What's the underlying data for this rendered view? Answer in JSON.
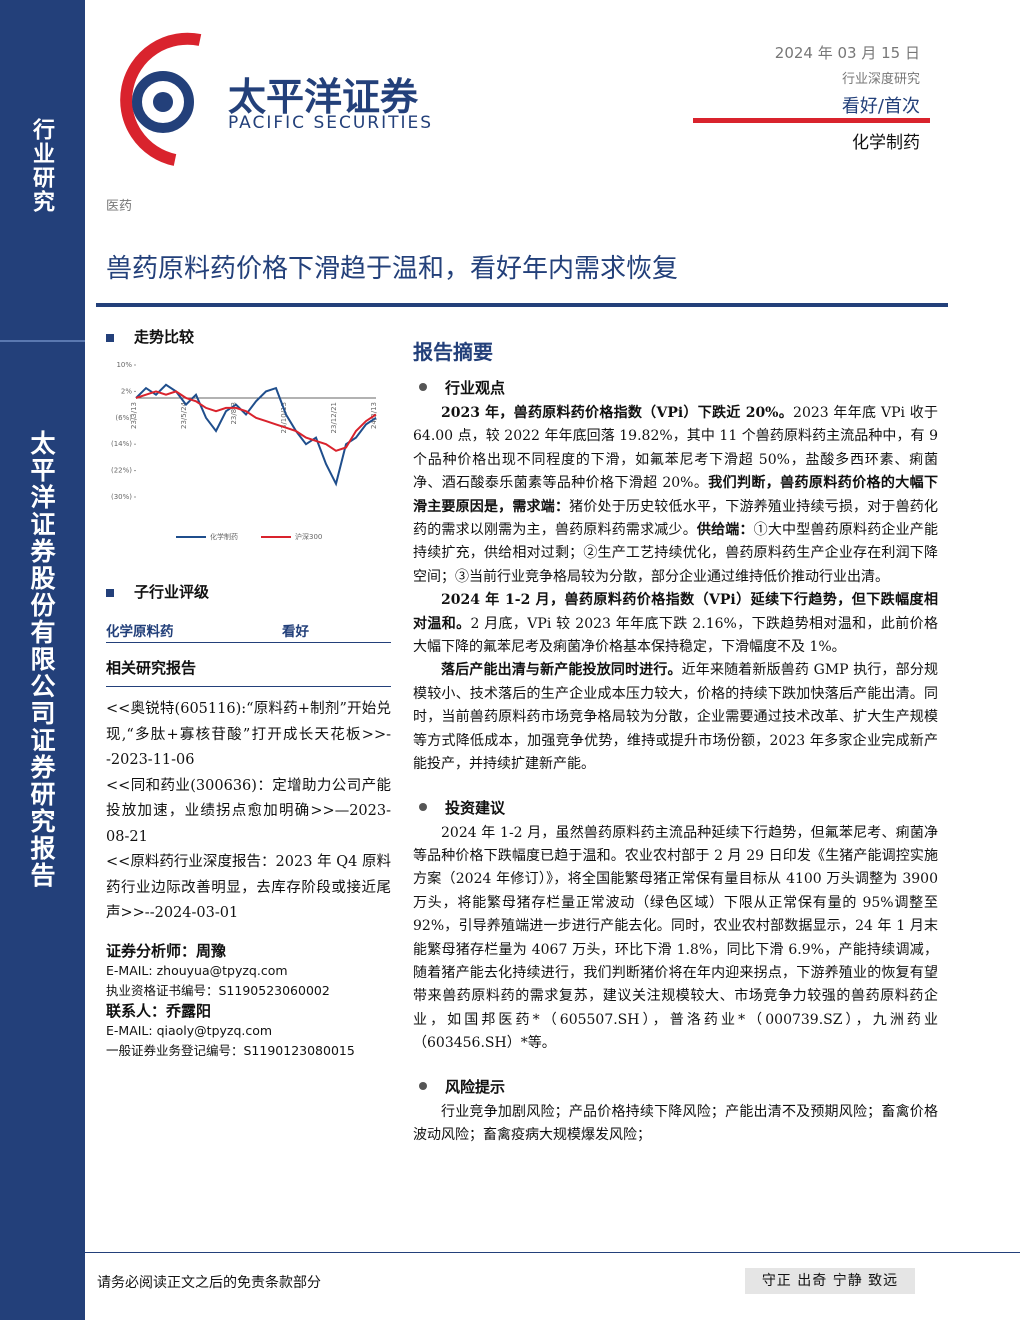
{
  "header": {
    "company_cn": "太平洋证券",
    "company_en": "PACIFIC SECURITIES",
    "date": "2024 年 03 月 15 日",
    "report_type": "行业深度研究",
    "rating": "看好/首次",
    "sector": "化学制药"
  },
  "sidebar": {
    "top": "行业研究",
    "vertical": "太平洋证券股份有限公司证券研究报告"
  },
  "category": "医药",
  "title": "兽药原料药价格下滑趋于温和，看好年内需求恢复",
  "left": {
    "trend_heading": "走势比较",
    "chart_data": {
      "type": "line",
      "categories": [
        "23/3/13",
        null,
        null,
        null,
        null,
        "23/5/24",
        null,
        null,
        null,
        null,
        "23/8/3",
        null,
        null,
        null,
        null,
        "23/10/13",
        null,
        null,
        null,
        null,
        "23/12/21",
        null,
        null,
        null,
        "24/3/13"
      ],
      "series": [
        {
          "name": "化学制药",
          "color": "#1f4e8c",
          "values": [
            0,
            3,
            1,
            4,
            2,
            -2,
            1,
            -6,
            -10,
            -4,
            -2,
            -5,
            -1,
            2,
            3,
            -5,
            -10,
            -14,
            -12,
            -20,
            -26,
            -14,
            -12,
            -8,
            -6
          ]
        },
        {
          "name": "沪深300",
          "color": "#d9232d",
          "values": [
            0,
            1,
            2,
            1,
            2,
            0,
            -1,
            -3,
            -4,
            -3,
            -3,
            -4,
            -6,
            -7,
            -8,
            -9,
            -10,
            -12,
            -13,
            -14,
            -16,
            -15,
            -10,
            -7,
            -5
          ]
        }
      ],
      "ylim": [
        -30,
        10
      ],
      "baseline": 0,
      "yticks": [
        {
          "value": 10,
          "label": "10%"
        },
        {
          "value": 2,
          "label": "2%"
        },
        {
          "value": -6,
          "label": "(6%)"
        },
        {
          "value": -14,
          "label": "(14%)"
        },
        {
          "value": -22,
          "label": "(22%)"
        },
        {
          "value": -30,
          "label": "(30%)"
        }
      ]
    },
    "sub_rating_heading": "子行业评级",
    "sub_rating_row": [
      "化学原料药",
      "看好"
    ],
    "related_heading": "相关研究报告",
    "related": [
      "<<奥锐特(605116):“原料药+制剂”开始兑现,“多肽+寡核苷酸”打开成长天花板>>--2023-11-06",
      "<<同和药业(300636)：定增助力公司产能投放加速，业绩拐点愈加明确>>—2023-08-21",
      "<<原料药行业深度报告：2023 年 Q4 原料药行业边际改善明显，去库存阶段或接近尾声>>--2024-03-01"
    ],
    "contacts": [
      {
        "b": "证券分析师：周豫"
      },
      {
        "t": "E-MAIL: zhouyua@tpyzq.com"
      },
      {
        "t": "执业资格证书编号：S1190523060002"
      },
      {
        "b": "联系人：乔露阳"
      },
      {
        "t": "E-MAIL: qiaoly@tpyzq.com"
      },
      {
        "t": "一般证券业务登记编号：S1190123080015"
      }
    ]
  },
  "right": {
    "summary_heading": "报告摘要",
    "sections": [
      {
        "heading": "行业观点",
        "paragraphs": [
          [
            {
              "b": "2023 年，兽药原料药价格指数（VPi）下跌近 20%。"
            },
            {
              "t": "2023 年年底 VPi 收于 64.00 点，较 2022 年年底回落 19.82%，其中 11 个兽药原料药主流品种中，有 9 个品种价格出现不同程度的下滑，如氟苯尼考下滑超 50%，盐酸多西环素、痢菌净、酒石酸泰乐菌素等品种价格下滑超 20%。"
            },
            {
              "b": "我们判断，兽药原料药价格的大幅下滑主要原因是，需求端："
            },
            {
              "t": "猪价处于历史较低水平，下游养殖业持续亏损，对于兽药化药的需求以刚需为主，兽药原料药需求减少。"
            },
            {
              "b": "供给端："
            },
            {
              "t": "①大中型兽药原料药企业产能持续扩充，供给相对过剩；②生产工艺持续优化，兽药原料药生产企业存在利润下降空间；③当前行业竞争格局较为分散，部分企业通过维持低价推动行业出清。"
            }
          ],
          [
            {
              "b": "2024 年 1-2 月，兽药原料药价格指数（VPi）延续下行趋势，但下跌幅度相对温和。"
            },
            {
              "t": "2 月底，VPi 较 2023 年年底下跌 2.16%，下跌趋势相对温和，此前价格大幅下降的氟苯尼考及痢菌净价格基本保持稳定，下滑幅度不及 1%。"
            }
          ],
          [
            {
              "b": "落后产能出清与新产能投放同时进行。"
            },
            {
              "t": "近年来随着新版兽药 GMP 执行，部分规模较小、技术落后的生产企业成本压力较大，价格的持续下跌加快落后产能出清。同时，当前兽药原料药市场竞争格局较为分散，企业需要通过技术改革、扩大生产规模等方式降低成本，加强竞争优势，维持或提升市场份额，2023 年多家企业完成新产能投产，并持续扩建新产能。"
            }
          ]
        ]
      },
      {
        "heading": "投资建议",
        "paragraphs": [
          [
            {
              "t": "2024 年 1-2 月，虽然兽药原料药主流品种延续下行趋势，但氟苯尼考、痢菌净等品种价格下跌幅度已趋于温和。农业农村部于 2 月 29 日印发《生猪产能调控实施方案（2024 年修订）》，将全国能繁母猪正常保有量目标从 4100 万头调整为 3900 万头，将能繁母猪存栏量正常波动（绿色区域）下限从正常保有量的 95%调整至 92%，引导养殖端进一步进行产能去化。同时，农业农村部数据显示，24 年 1 月末能繁母猪存栏量为 4067 万头，环比下滑 1.8%，同比下滑 6.9%，产能持续调减，随着猪产能去化持续进行，我们判断猪价将在年内迎来拐点，下游养殖业的恢复有望带来兽药原料药的需求复苏，建议关注规模较大、市场竞争力较强的兽药原料药企业，如国邦医药*（605507.SH），普洛药业*（000739.SZ），九洲药业（603456.SH）*等。"
            }
          ]
        ]
      },
      {
        "heading": "风险提示",
        "paragraphs": [
          [
            {
              "t": "行业竞争加剧风险；产品价格持续下降风险；产能出清不及预期风险；畜禽价格波动风险；畜禽疫病大规模爆发风险；"
            }
          ]
        ]
      }
    ]
  },
  "footer": {
    "disclaimer": "请务必阅读正文之后的免责条款部分",
    "motto": "守正 出奇 宁静 致远"
  }
}
